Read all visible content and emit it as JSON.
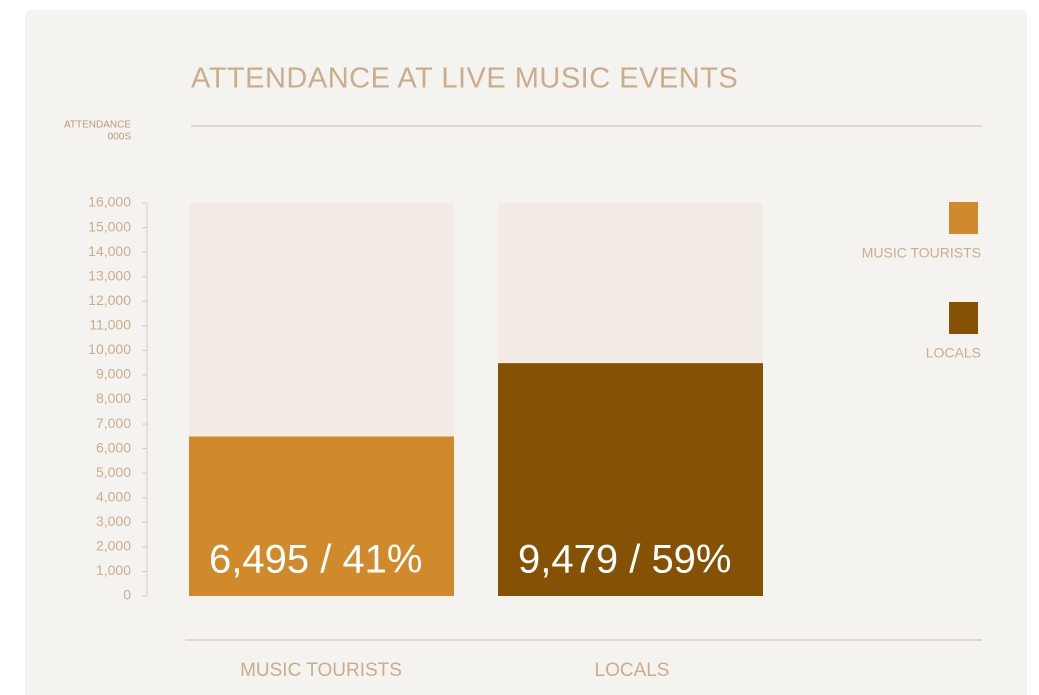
{
  "chart_data": {
    "type": "bar",
    "title": "ATTENDANCE AT LIVE MUSIC EVENTS",
    "y_label": [
      "ATTENDANCE",
      "000S"
    ],
    "categories": [
      "MUSIC TOURISTS",
      "LOCALS"
    ],
    "values": [
      6495,
      9479
    ],
    "value_labels": [
      "6,495 / 41%",
      "9,479 / 59%"
    ],
    "colors": [
      "#d08a2c",
      "#855104"
    ],
    "track_color": "#f2ebe6",
    "ylim": [
      0,
      16000
    ],
    "yticks": [
      0,
      {
        "value": 1000,
        "label": "1,000"
      },
      {
        "value": 2000,
        "label": "2,000"
      },
      {
        "value": 3000,
        "label": "3,000"
      },
      {
        "value": 4000,
        "label": "4,000"
      },
      {
        "value": 5000,
        "label": "5,000"
      },
      {
        "value": 6000,
        "label": "6,000"
      },
      {
        "value": 7000,
        "label": "7,000"
      },
      {
        "value": 8000,
        "label": "8,000"
      },
      {
        "value": 9000,
        "label": "9,000"
      },
      {
        "value": 10000,
        "label": "10,000"
      },
      {
        "value": 11000,
        "label": "11,000"
      },
      {
        "value": 12000,
        "label": "12,000"
      },
      {
        "value": 13000,
        "label": "13,000"
      },
      {
        "value": 14000,
        "label": "14,000"
      },
      {
        "value": 15000,
        "label": "15,000"
      },
      {
        "value": 16000,
        "label": "16,000"
      }
    ],
    "legend": "right"
  }
}
